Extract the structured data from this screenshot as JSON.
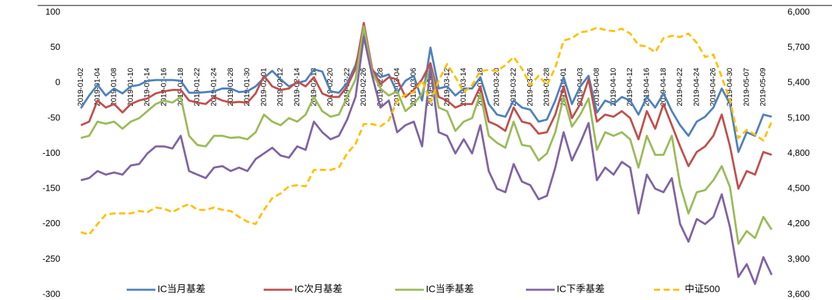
{
  "chart_data": {
    "type": "line",
    "categories": [
      "2019-01-02",
      null,
      "2019-01-04",
      null,
      "2019-01-08",
      null,
      "2019-01-10",
      null,
      "2019-01-14",
      null,
      "2019-01-16",
      null,
      "2019-01-18",
      null,
      "2019-01-22",
      null,
      "2019-01-24",
      null,
      "2019-01-28",
      null,
      "2019-01-30",
      null,
      "2019-02-01",
      null,
      "2019-02-12",
      null,
      "2019-02-14",
      null,
      "2019-02-18",
      null,
      "2019-02-20",
      null,
      "2019-02-22",
      null,
      "2019-02-26",
      null,
      "2019-02-28",
      null,
      "2019-03-04",
      null,
      "2019-03-06",
      null,
      "2019-03-08",
      null,
      "2019-03-12",
      null,
      "2019-03-14",
      null,
      "2019-03-18",
      null,
      "2019-03-20",
      null,
      "2019-03-22",
      null,
      "2019-03-26",
      null,
      "2019-03-28",
      null,
      "2019-04-01",
      null,
      "2019-04-03",
      null,
      "2019-04-08",
      null,
      "2019-04-10",
      null,
      "2019-04-12",
      null,
      "2019-04-16",
      null,
      "2019-04-18",
      null,
      "2019-04-22",
      null,
      "2019-04-24",
      null,
      "2019-04-26",
      null,
      "2019-04-30",
      null,
      "2019-05-07",
      null,
      "2019-05-09",
      null
    ],
    "series": [
      {
        "name": "IC当月基差",
        "color": "#4f81bd",
        "values": [
          -36,
          -18,
          -3,
          -18,
          -8,
          -15,
          -5,
          -3,
          3,
          4,
          4,
          4,
          3,
          -14,
          -14,
          -13,
          -12,
          -8,
          -8,
          -13,
          -12,
          -5,
          7,
          17,
          5,
          -5,
          0,
          3,
          19,
          16,
          -12,
          -14,
          0,
          25,
          70,
          18,
          8,
          12,
          -14,
          3,
          10,
          -25,
          50,
          -8,
          -5,
          -18,
          -8,
          -8,
          8,
          -30,
          -45,
          -48,
          -25,
          -35,
          -38,
          -55,
          -52,
          -25,
          8,
          -30,
          -5,
          10,
          -42,
          -25,
          -30,
          -20,
          -25,
          -45,
          -20,
          -35,
          -15,
          -40,
          -60,
          -75,
          -55,
          -48,
          -35,
          -8,
          -30,
          -98,
          -70,
          -75,
          -45,
          -48
        ]
      },
      {
        "name": "IC次月基差",
        "color": "#c0504d",
        "values": [
          -60,
          -55,
          -25,
          -35,
          -30,
          -42,
          -30,
          -25,
          -22,
          -15,
          -12,
          -10,
          -10,
          -25,
          -28,
          -30,
          -20,
          -25,
          -28,
          -27,
          -28,
          -15,
          10,
          -5,
          -10,
          -8,
          2,
          -5,
          8,
          -15,
          -20,
          -20,
          -5,
          20,
          85,
          20,
          -2,
          8,
          5,
          -20,
          -10,
          5,
          28,
          -20,
          -25,
          -35,
          -30,
          -30,
          -5,
          -55,
          -60,
          -68,
          -35,
          -55,
          -58,
          -72,
          -70,
          -45,
          -5,
          -50,
          -30,
          5,
          -55,
          -45,
          -48,
          -40,
          -50,
          -80,
          -40,
          -65,
          -30,
          -60,
          -90,
          -118,
          -98,
          -90,
          -75,
          -45,
          -90,
          -150,
          -125,
          -130,
          -98,
          -102
        ]
      },
      {
        "name": "IC当季基差",
        "color": "#9bbb59",
        "values": [
          -78,
          -75,
          -55,
          -58,
          -55,
          -65,
          -55,
          -50,
          -40,
          -30,
          -25,
          -28,
          -20,
          -75,
          -88,
          -90,
          -75,
          -75,
          -78,
          -77,
          -80,
          -70,
          -45,
          -55,
          -60,
          -50,
          -55,
          -45,
          -20,
          -40,
          -48,
          -45,
          -20,
          5,
          80,
          15,
          -8,
          -18,
          -12,
          -40,
          -30,
          -15,
          22,
          -35,
          -40,
          -68,
          -55,
          -50,
          -15,
          -75,
          -85,
          -92,
          -55,
          -88,
          -90,
          -110,
          -100,
          -70,
          -20,
          -62,
          -45,
          -22,
          -95,
          -70,
          -75,
          -70,
          -80,
          -120,
          -75,
          -102,
          -102,
          -75,
          -145,
          -185,
          -155,
          -152,
          -138,
          -118,
          -148,
          -228,
          -210,
          -220,
          -190,
          -208
        ]
      },
      {
        "name": "IC下季基差",
        "color": "#8064a2",
        "values": [
          -138,
          -135,
          -125,
          -130,
          -127,
          -130,
          -117,
          -115,
          -100,
          -90,
          -90,
          -93,
          -75,
          -125,
          -130,
          -135,
          -120,
          -118,
          -125,
          -120,
          -125,
          -108,
          -100,
          -92,
          -103,
          -106,
          -90,
          -95,
          -55,
          -70,
          -80,
          -75,
          -52,
          -20,
          65,
          10,
          -35,
          -25,
          -70,
          -60,
          -55,
          -90,
          22,
          -70,
          -75,
          -100,
          -80,
          -100,
          -60,
          -125,
          -150,
          -155,
          -115,
          -140,
          -145,
          -165,
          -160,
          -120,
          -70,
          -110,
          -85,
          -57,
          -138,
          -120,
          -130,
          -112,
          -120,
          -185,
          -130,
          -150,
          -155,
          -135,
          -200,
          -225,
          -193,
          -200,
          -190,
          -158,
          -205,
          -275,
          -257,
          -285,
          -247,
          -272
        ]
      },
      {
        "name": "中证500",
        "color": "#ffc000",
        "dashed": true,
        "axis": "y2",
        "values": [
          4130,
          4110,
          4200,
          4280,
          4290,
          4290,
          4290,
          4310,
          4300,
          4340,
          4330,
          4300,
          4340,
          4370,
          4320,
          4320,
          4340,
          4320,
          4310,
          4260,
          4220,
          4200,
          4320,
          4420,
          4460,
          4520,
          4530,
          4520,
          4660,
          4660,
          4660,
          4680,
          4800,
          4880,
          5050,
          5050,
          5030,
          5080,
          5250,
          5300,
          5320,
          5420,
          5240,
          5420,
          5560,
          5450,
          5320,
          5380,
          5500,
          5510,
          5500,
          5550,
          5620,
          5520,
          5380,
          5460,
          5380,
          5530,
          5760,
          5780,
          5830,
          5840,
          5870,
          5850,
          5840,
          5860,
          5820,
          5720,
          5710,
          5660,
          5780,
          5800,
          5790,
          5820,
          5740,
          5620,
          5640,
          5450,
          5250,
          4930,
          5000,
          4960,
          4910,
          5070
        ]
      }
    ],
    "ylim": [
      -300,
      100
    ],
    "yticks": [
      -300,
      -250,
      -200,
      -150,
      -100,
      -50,
      0,
      50,
      100
    ],
    "y2lim": [
      3600,
      6000
    ],
    "y2ticks": [
      {
        "value": 3600,
        "label": "3,600"
      },
      {
        "value": 3900,
        "label": "3,900"
      },
      {
        "value": 4200,
        "label": "4,200"
      },
      {
        "value": 4500,
        "label": "4,500"
      },
      {
        "value": 4800,
        "label": "4,800"
      },
      {
        "value": 5100,
        "label": "5,100"
      },
      {
        "value": 5400,
        "label": "5,400"
      },
      {
        "value": 5700,
        "label": "5,700"
      },
      {
        "value": 6000,
        "label": "6,000"
      }
    ],
    "grid": false,
    "legend": "bottom"
  }
}
